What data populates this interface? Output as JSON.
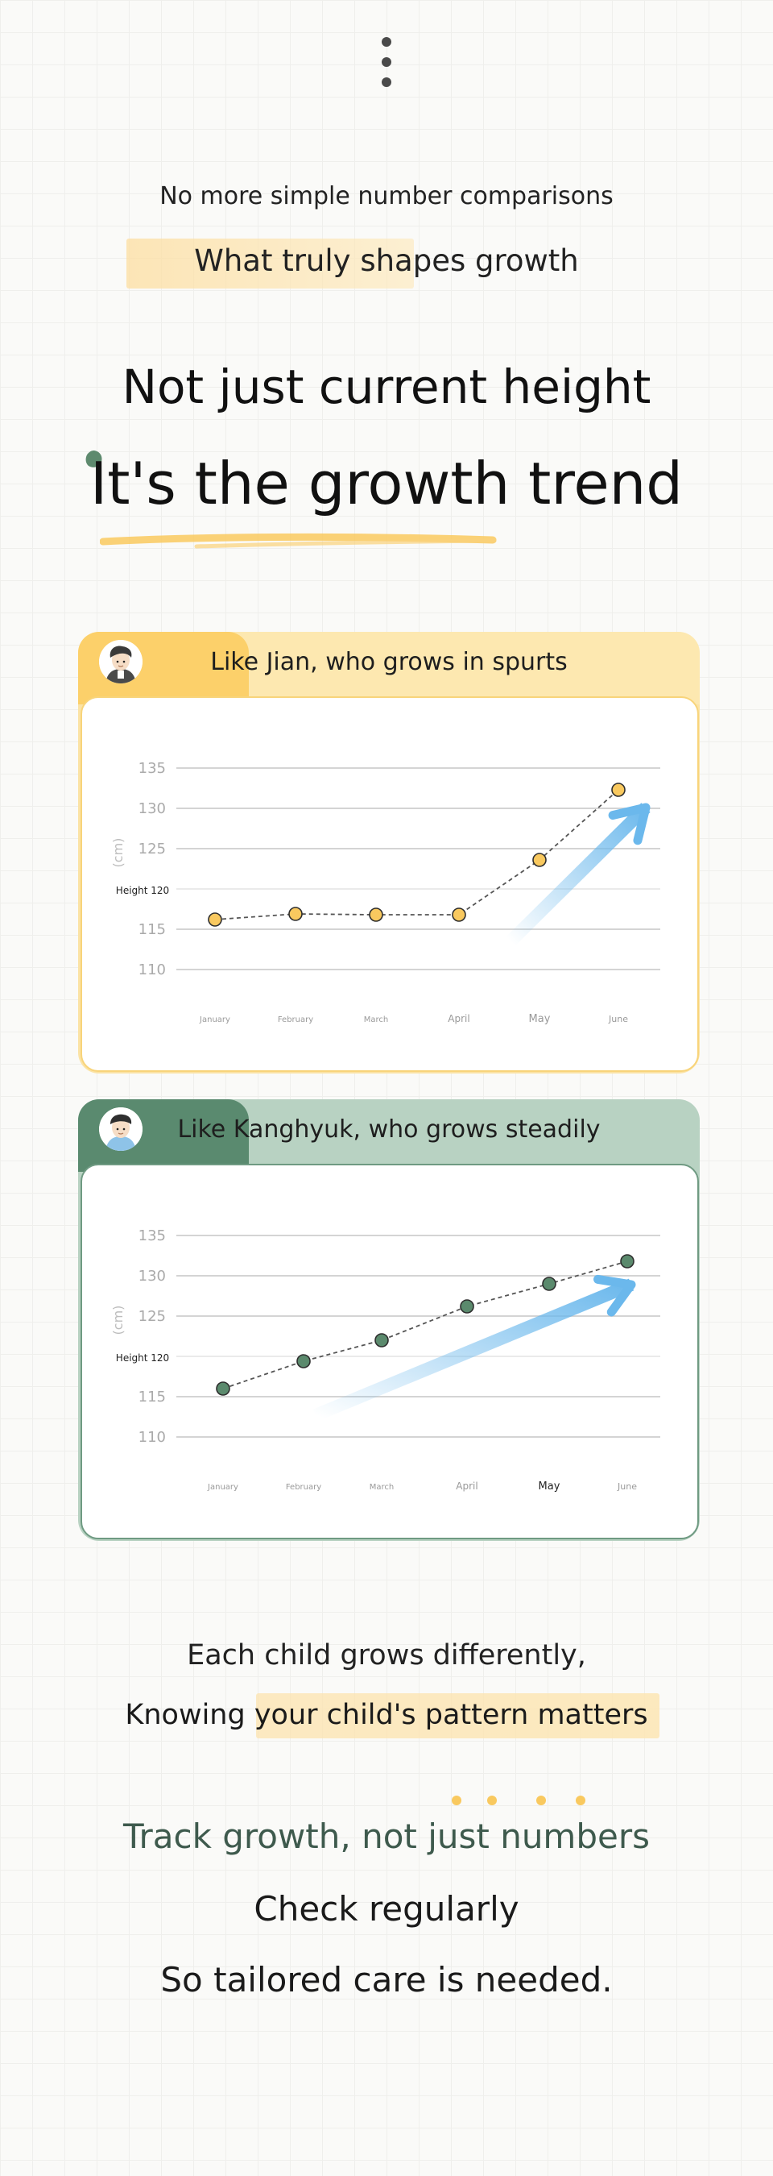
{
  "intro": "No more simple number comparisons",
  "highlight": "What truly shapes growth",
  "headline1": "Not just current height",
  "headline2": "It's the growth trend",
  "cards": [
    {
      "title": "Like Jian, who grows in spurts",
      "avatar_icon": "boy-avatar-icon"
    },
    {
      "title": "Like Kanghyuk, who grows steadily",
      "avatar_icon": "boy-avatar-icon"
    }
  ],
  "chart_data": [
    {
      "type": "line",
      "x": [
        "January",
        "February",
        "March",
        "April",
        "May",
        "June"
      ],
      "series": [
        {
          "values": [
            116.2,
            116.9,
            116.8,
            116.8,
            123.6,
            132.3
          ]
        }
      ],
      "y_ticks": [
        "110",
        "115",
        "Height 120",
        "125",
        "130",
        "135"
      ],
      "ylabel": "(cm)",
      "ylim": [
        107,
        137
      ],
      "marker_color": "#f9c95f",
      "trend": "upward arrow",
      "grid": true
    },
    {
      "type": "line",
      "x": [
        "January",
        "February",
        "March",
        "April",
        "May",
        "June"
      ],
      "series": [
        {
          "values": [
            116.0,
            119.4,
            122.0,
            126.2,
            129.0,
            131.8
          ]
        }
      ],
      "y_ticks": [
        "110",
        "115",
        "Height 120",
        "125",
        "130",
        "135"
      ],
      "ylabel": "(cm)",
      "ylim": [
        107,
        137
      ],
      "marker_color": "#5b8a6d",
      "trend": "upward arrow",
      "grid": true
    }
  ],
  "outro": {
    "line1": "Each child grows differently,",
    "line2_prefix": "Knowing ",
    "line2_highlight": "your child's pattern matters",
    "track": "Track growth, not just numbers",
    "check": "Check regularly",
    "care": "So tailored care is needed."
  },
  "colors": {
    "yellow": "#fcd06a",
    "green": "#5a8a6f",
    "arrow_blue": "#6bb8ec"
  }
}
